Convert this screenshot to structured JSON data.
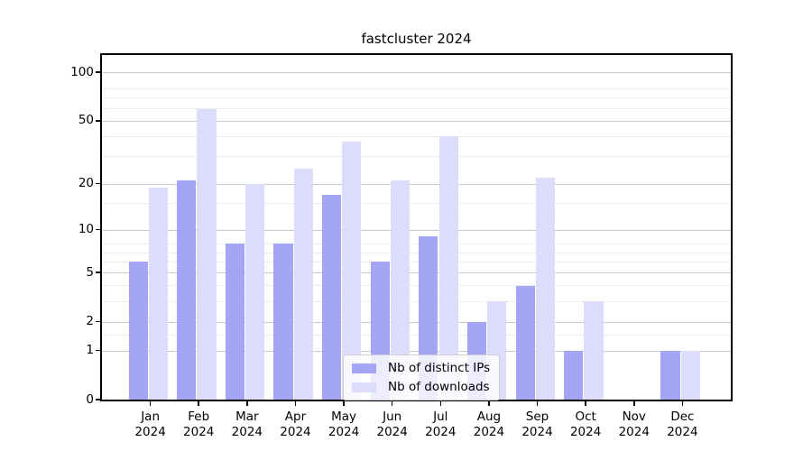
{
  "title": "fastcluster 2024",
  "chart_data": {
    "type": "bar",
    "title": "fastcluster 2024",
    "categories": [
      "Jan 2024",
      "Feb 2024",
      "Mar 2024",
      "Apr 2024",
      "May 2024",
      "Jun 2024",
      "Jul 2024",
      "Aug 2024",
      "Sep 2024",
      "Oct 2024",
      "Nov 2024",
      "Dec 2024"
    ],
    "series": [
      {
        "name": "Nb of distinct IPs",
        "color": "#a5a5f6",
        "values": [
          6,
          21,
          8,
          8,
          17,
          6,
          9,
          2,
          4,
          1,
          0,
          1
        ]
      },
      {
        "name": "Nb of downloads",
        "color": "#dcdcfb",
        "values": [
          19,
          59,
          20,
          25,
          37,
          21,
          40,
          3,
          22,
          3,
          0,
          1
        ]
      }
    ],
    "xlabel": "",
    "ylabel": "",
    "yscale": "log1p",
    "yticks": [
      100,
      50,
      20,
      10,
      5,
      2,
      1,
      0
    ],
    "yticks_minor": [
      1.5,
      3,
      4,
      6,
      7,
      8,
      15,
      30,
      40,
      60,
      70,
      80
    ],
    "ylim": [
      0,
      128
    ],
    "grid": true,
    "legend_position": "lower center"
  },
  "colors": {
    "bar_distinct_ips": "#a5a5f6",
    "bar_downloads": "#dcdcfb",
    "grid_major": "#c9c9c9",
    "grid_minor": "#ececec",
    "axis": "#000000",
    "background": "#ffffff"
  }
}
